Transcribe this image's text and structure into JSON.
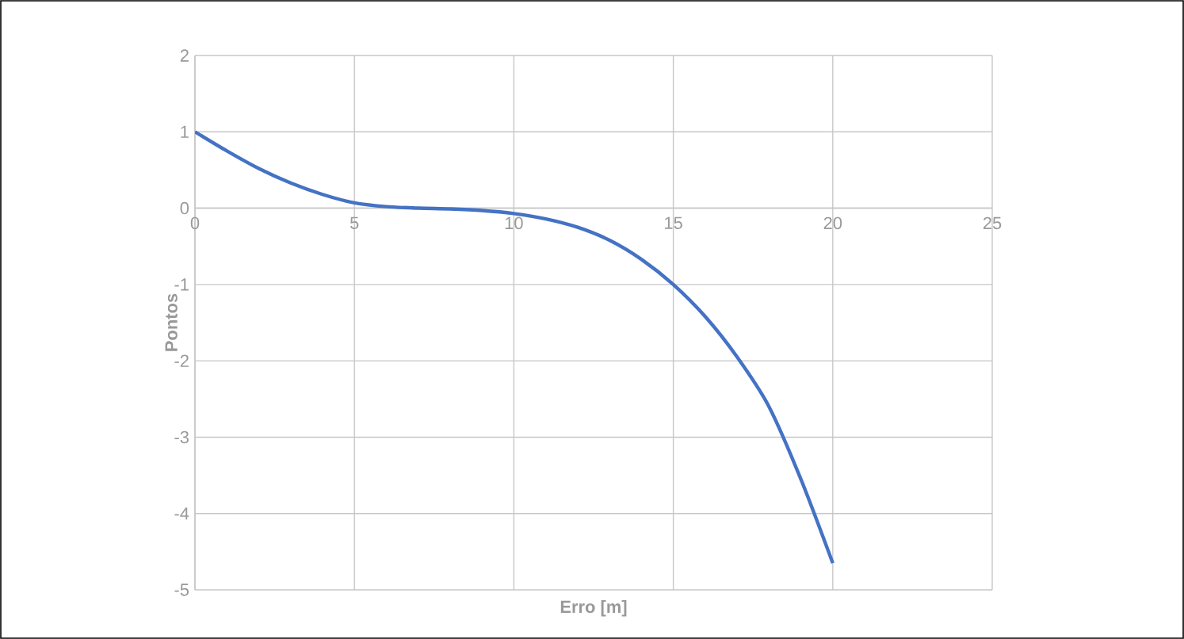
{
  "chart_data": {
    "type": "line",
    "xlabel": "Erro [m]",
    "ylabel": "Pontos",
    "x": [
      0,
      1,
      2,
      3,
      4,
      5,
      6,
      7,
      8,
      9,
      10,
      11,
      12,
      13,
      14,
      15,
      16,
      17,
      18,
      19,
      20
    ],
    "series": [
      {
        "color": "#4472c4",
        "values": [
          1.0,
          0.75,
          0.52,
          0.33,
          0.18,
          0.07,
          0.02,
          0.0,
          -0.01,
          -0.03,
          -0.07,
          -0.14,
          -0.25,
          -0.42,
          -0.67,
          -1.0,
          -1.42,
          -1.95,
          -2.6,
          -3.55,
          -4.65
        ]
      }
    ],
    "xlim": [
      0,
      25
    ],
    "xticks": [
      0,
      5,
      10,
      15,
      20,
      25
    ],
    "ylim": [
      -5,
      2
    ],
    "yticks": [
      -5,
      -4,
      -3,
      -2,
      -1,
      0,
      1,
      2
    ],
    "grid": true,
    "legend": false,
    "marker": "none",
    "line_style": "solid"
  }
}
